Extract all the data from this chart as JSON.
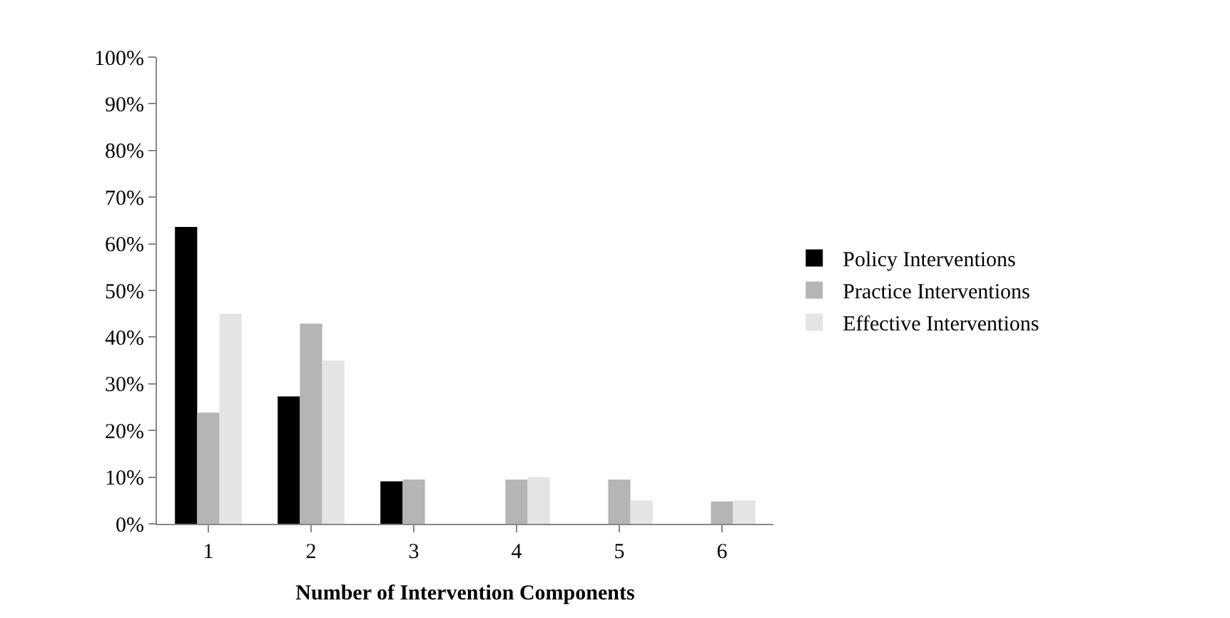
{
  "chart_data": {
    "type": "bar",
    "xlabel": "Number of Intervention Components",
    "categories": [
      "1",
      "2",
      "3",
      "4",
      "5",
      "6"
    ],
    "series": [
      {
        "name": "Policy Interventions",
        "color": "#000000",
        "values": [
          63.6,
          27.3,
          9.1,
          0,
          0,
          0
        ]
      },
      {
        "name": "Practice Interventions",
        "color": "#b5b5b5",
        "values": [
          23.8,
          42.9,
          9.5,
          9.5,
          9.5,
          4.8
        ]
      },
      {
        "name": "Effective Interventions",
        "color": "#e3e4e6",
        "values": [
          45,
          35,
          0,
          10,
          5,
          5
        ]
      }
    ],
    "ylim": [
      0,
      100
    ],
    "yticks": [
      {
        "value": 0,
        "label": "0%"
      },
      {
        "value": 10,
        "label": "10%"
      },
      {
        "value": 20,
        "label": "20%"
      },
      {
        "value": 30,
        "label": "30%"
      },
      {
        "value": 40,
        "label": "40%"
      },
      {
        "value": 50,
        "label": "50%"
      },
      {
        "value": 60,
        "label": "60%"
      },
      {
        "value": 70,
        "label": "70%"
      },
      {
        "value": 80,
        "label": "80%"
      },
      {
        "value": 90,
        "label": "90%"
      },
      {
        "value": 100,
        "label": "100%"
      }
    ],
    "legend": "right"
  }
}
